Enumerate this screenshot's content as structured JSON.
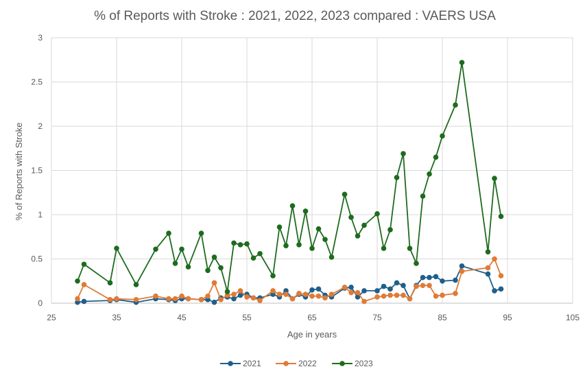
{
  "chart_data": {
    "type": "line",
    "title": "% of Reports with Stroke : 2021, 2022, 2023 compared : VAERS USA",
    "xlabel": "Age in years",
    "ylabel": "% of Reports with Stroke",
    "xlim": [
      25,
      105
    ],
    "ylim": [
      0,
      3
    ],
    "xticks": [
      25,
      35,
      45,
      55,
      65,
      75,
      85,
      95,
      105
    ],
    "yticks": [
      0,
      0.5,
      1,
      1.5,
      2,
      2.5,
      3
    ],
    "ytick_labels": [
      "0",
      "0.5",
      "1",
      "1.5",
      "2",
      "2.5",
      "3"
    ],
    "grid": true,
    "legend_position": "bottom",
    "series": [
      {
        "name": "2021",
        "color": "#1f5f8b",
        "x": [
          29,
          30,
          34,
          35,
          38,
          41,
          43,
          44,
          45,
          46,
          48,
          49,
          50,
          51,
          52,
          53,
          54,
          55,
          56,
          57,
          59,
          60,
          61,
          62,
          63,
          64,
          65,
          66,
          67,
          68,
          70,
          71,
          72,
          73,
          75,
          76,
          77,
          78,
          79,
          80,
          81,
          82,
          83,
          84,
          85,
          87,
          88,
          92,
          93,
          94
        ],
        "y": [
          0.01,
          0.02,
          0.03,
          0.04,
          0.01,
          0.05,
          0.04,
          0.03,
          0.05,
          0.05,
          0.04,
          0.04,
          0.01,
          0.06,
          0.07,
          0.05,
          0.09,
          0.1,
          0.06,
          0.06,
          0.1,
          0.07,
          0.14,
          0.05,
          0.1,
          0.07,
          0.15,
          0.16,
          0.09,
          0.07,
          0.17,
          0.18,
          0.07,
          0.14,
          0.14,
          0.19,
          0.16,
          0.23,
          0.2,
          0.05,
          0.2,
          0.29,
          0.29,
          0.3,
          0.25,
          0.26,
          0.42,
          0.33,
          0.14,
          0.16
        ]
      },
      {
        "name": "2022",
        "color": "#e07b35",
        "x": [
          29,
          30,
          34,
          35,
          38,
          41,
          43,
          44,
          45,
          46,
          48,
          49,
          50,
          51,
          52,
          53,
          54,
          55,
          56,
          57,
          59,
          60,
          61,
          62,
          63,
          64,
          65,
          66,
          67,
          68,
          70,
          71,
          72,
          73,
          75,
          76,
          77,
          78,
          79,
          80,
          81,
          82,
          83,
          84,
          85,
          87,
          88,
          92,
          93,
          94
        ],
        "y": [
          0.05,
          0.21,
          0.04,
          0.05,
          0.04,
          0.08,
          0.05,
          0.05,
          0.08,
          0.05,
          0.04,
          0.08,
          0.23,
          0.04,
          0.09,
          0.1,
          0.14,
          0.07,
          0.06,
          0.03,
          0.14,
          0.1,
          0.1,
          0.05,
          0.11,
          0.1,
          0.08,
          0.08,
          0.06,
          0.1,
          0.18,
          0.12,
          0.12,
          0.02,
          0.07,
          0.08,
          0.09,
          0.09,
          0.09,
          0.05,
          0.19,
          0.2,
          0.2,
          0.08,
          0.09,
          0.11,
          0.36,
          0.4,
          0.5,
          0.31
        ]
      },
      {
        "name": "2023",
        "color": "#1e6b1e",
        "x": [
          29,
          30,
          34,
          35,
          38,
          41,
          43,
          44,
          45,
          46,
          48,
          49,
          50,
          51,
          52,
          53,
          54,
          55,
          56,
          57,
          59,
          60,
          61,
          62,
          63,
          64,
          65,
          66,
          67,
          68,
          70,
          71,
          72,
          73,
          75,
          76,
          77,
          78,
          79,
          80,
          81,
          82,
          83,
          84,
          85,
          87,
          88,
          92,
          93,
          94
        ],
        "y": [
          0.25,
          0.44,
          0.23,
          0.62,
          0.21,
          0.61,
          0.79,
          0.45,
          0.61,
          0.41,
          0.79,
          0.37,
          0.52,
          0.4,
          0.13,
          0.68,
          0.66,
          0.67,
          0.51,
          0.56,
          0.31,
          0.86,
          0.65,
          1.1,
          0.66,
          1.04,
          0.62,
          0.84,
          0.72,
          0.52,
          1.23,
          0.97,
          0.76,
          0.88,
          1.01,
          0.62,
          0.83,
          1.42,
          1.69,
          0.62,
          0.45,
          1.21,
          1.46,
          1.65,
          1.89,
          2.24,
          2.72,
          0.58,
          1.41,
          0.98
        ]
      }
    ]
  }
}
